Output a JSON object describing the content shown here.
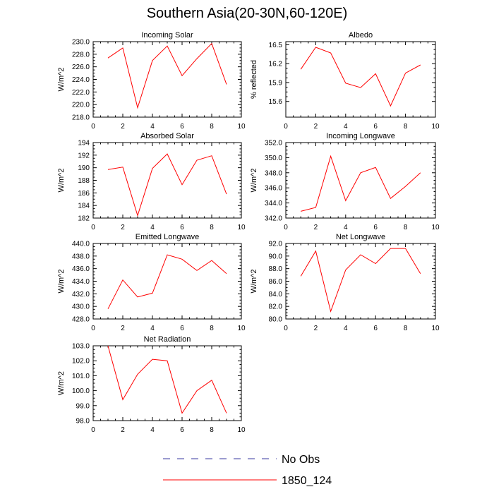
{
  "title": "Southern Asia(20-30N,60-120E)",
  "colors": {
    "series": "#ff0000",
    "obs": "#3a3aa0",
    "axis": "#000000"
  },
  "legend": {
    "obs_label": "No Obs",
    "model_label": "1850_124"
  },
  "chart_data": [
    {
      "type": "line",
      "title": "Incoming Solar",
      "ylabel": "W/m^2",
      "xlim": [
        0,
        10
      ],
      "ylim": [
        218,
        230
      ],
      "xticks": [
        "0",
        "2",
        "4",
        "6",
        "8",
        "10"
      ],
      "yticks": [
        "218.0",
        "220.0",
        "222.0",
        "224.0",
        "226.0",
        "228.0",
        "230.0"
      ],
      "series": [
        {
          "name": "1850_124",
          "x": [
            1,
            2,
            3,
            4,
            5,
            6,
            7,
            8,
            9
          ],
          "values": [
            227.4,
            229.0,
            219.5,
            227.0,
            229.3,
            224.6,
            227.3,
            229.7,
            223.2
          ]
        }
      ]
    },
    {
      "type": "line",
      "title": "Albedo",
      "ylabel": "% reflected",
      "xlim": [
        0,
        10
      ],
      "ylim": [
        15.35,
        16.55
      ],
      "xticks": [
        "0",
        "2",
        "4",
        "6",
        "8",
        "10"
      ],
      "yticks": [
        "15.6",
        "15.9",
        "16.2",
        "16.5"
      ],
      "series": [
        {
          "name": "1850_124",
          "x": [
            1,
            2,
            3,
            4,
            5,
            6,
            7,
            8,
            9
          ],
          "values": [
            16.11,
            16.46,
            16.37,
            15.89,
            15.82,
            16.04,
            15.53,
            16.05,
            16.18
          ]
        }
      ]
    },
    {
      "type": "line",
      "title": "Absorbed Solar",
      "ylabel": "W/m^2",
      "xlim": [
        0,
        10
      ],
      "ylim": [
        182,
        194
      ],
      "xticks": [
        "0",
        "2",
        "4",
        "6",
        "8",
        "10"
      ],
      "yticks": [
        "182",
        "184",
        "186",
        "188",
        "190",
        "192",
        "194"
      ],
      "series": [
        {
          "name": "1850_124",
          "x": [
            1,
            2,
            3,
            4,
            5,
            6,
            7,
            8,
            9
          ],
          "values": [
            189.7,
            190.1,
            182.4,
            189.9,
            192.2,
            187.3,
            191.2,
            191.9,
            185.8
          ]
        }
      ]
    },
    {
      "type": "line",
      "title": "Incoming Longwave",
      "ylabel": "W/m^2",
      "xlim": [
        0,
        10
      ],
      "ylim": [
        342,
        352
      ],
      "xticks": [
        "0",
        "2",
        "4",
        "6",
        "8",
        "10"
      ],
      "yticks": [
        "342.0",
        "344.0",
        "346.0",
        "348.0",
        "350.0",
        "352.0"
      ],
      "series": [
        {
          "name": "1850_124",
          "x": [
            1,
            2,
            3,
            4,
            5,
            6,
            7,
            8,
            9
          ],
          "values": [
            342.9,
            343.4,
            350.2,
            344.3,
            348.0,
            348.7,
            344.6,
            346.2,
            348.0
          ]
        }
      ]
    },
    {
      "type": "line",
      "title": "Emitted Longwave",
      "ylabel": "W/m^2",
      "xlim": [
        0,
        10
      ],
      "ylim": [
        428,
        440
      ],
      "xticks": [
        "0",
        "2",
        "4",
        "6",
        "8",
        "10"
      ],
      "yticks": [
        "428.0",
        "430.0",
        "432.0",
        "434.0",
        "436.0",
        "438.0",
        "440.0"
      ],
      "series": [
        {
          "name": "1850_124",
          "x": [
            1,
            2,
            3,
            4,
            5,
            6,
            7,
            8,
            9
          ],
          "values": [
            429.6,
            434.2,
            431.5,
            432.1,
            438.2,
            437.5,
            435.7,
            437.3,
            435.2
          ]
        }
      ]
    },
    {
      "type": "line",
      "title": "Net Longwave",
      "ylabel": "W/m^2",
      "xlim": [
        0,
        10
      ],
      "ylim": [
        80,
        92
      ],
      "xticks": [
        "0",
        "2",
        "4",
        "6",
        "8",
        "10"
      ],
      "yticks": [
        "80.0",
        "82.0",
        "84.0",
        "86.0",
        "88.0",
        "90.0",
        "92.0"
      ],
      "series": [
        {
          "name": "1850_124",
          "x": [
            1,
            2,
            3,
            4,
            5,
            6,
            7,
            8,
            9
          ],
          "values": [
            86.8,
            90.8,
            81.2,
            87.8,
            90.2,
            88.8,
            91.2,
            91.2,
            87.2
          ]
        }
      ]
    },
    {
      "type": "line",
      "title": "Net Radiation",
      "ylabel": "W/m^2",
      "xlim": [
        0,
        10
      ],
      "ylim": [
        98,
        103
      ],
      "xticks": [
        "0",
        "2",
        "4",
        "6",
        "8",
        "10"
      ],
      "yticks": [
        "98.0",
        "99.0",
        "100.0",
        "101.0",
        "102.0",
        "103.0"
      ],
      "series": [
        {
          "name": "1850_124",
          "x": [
            1,
            2,
            3,
            4,
            5,
            6,
            7,
            8,
            9
          ],
          "values": [
            103.0,
            99.4,
            101.1,
            102.1,
            102.0,
            98.5,
            100.0,
            100.7,
            98.5
          ]
        }
      ]
    }
  ]
}
